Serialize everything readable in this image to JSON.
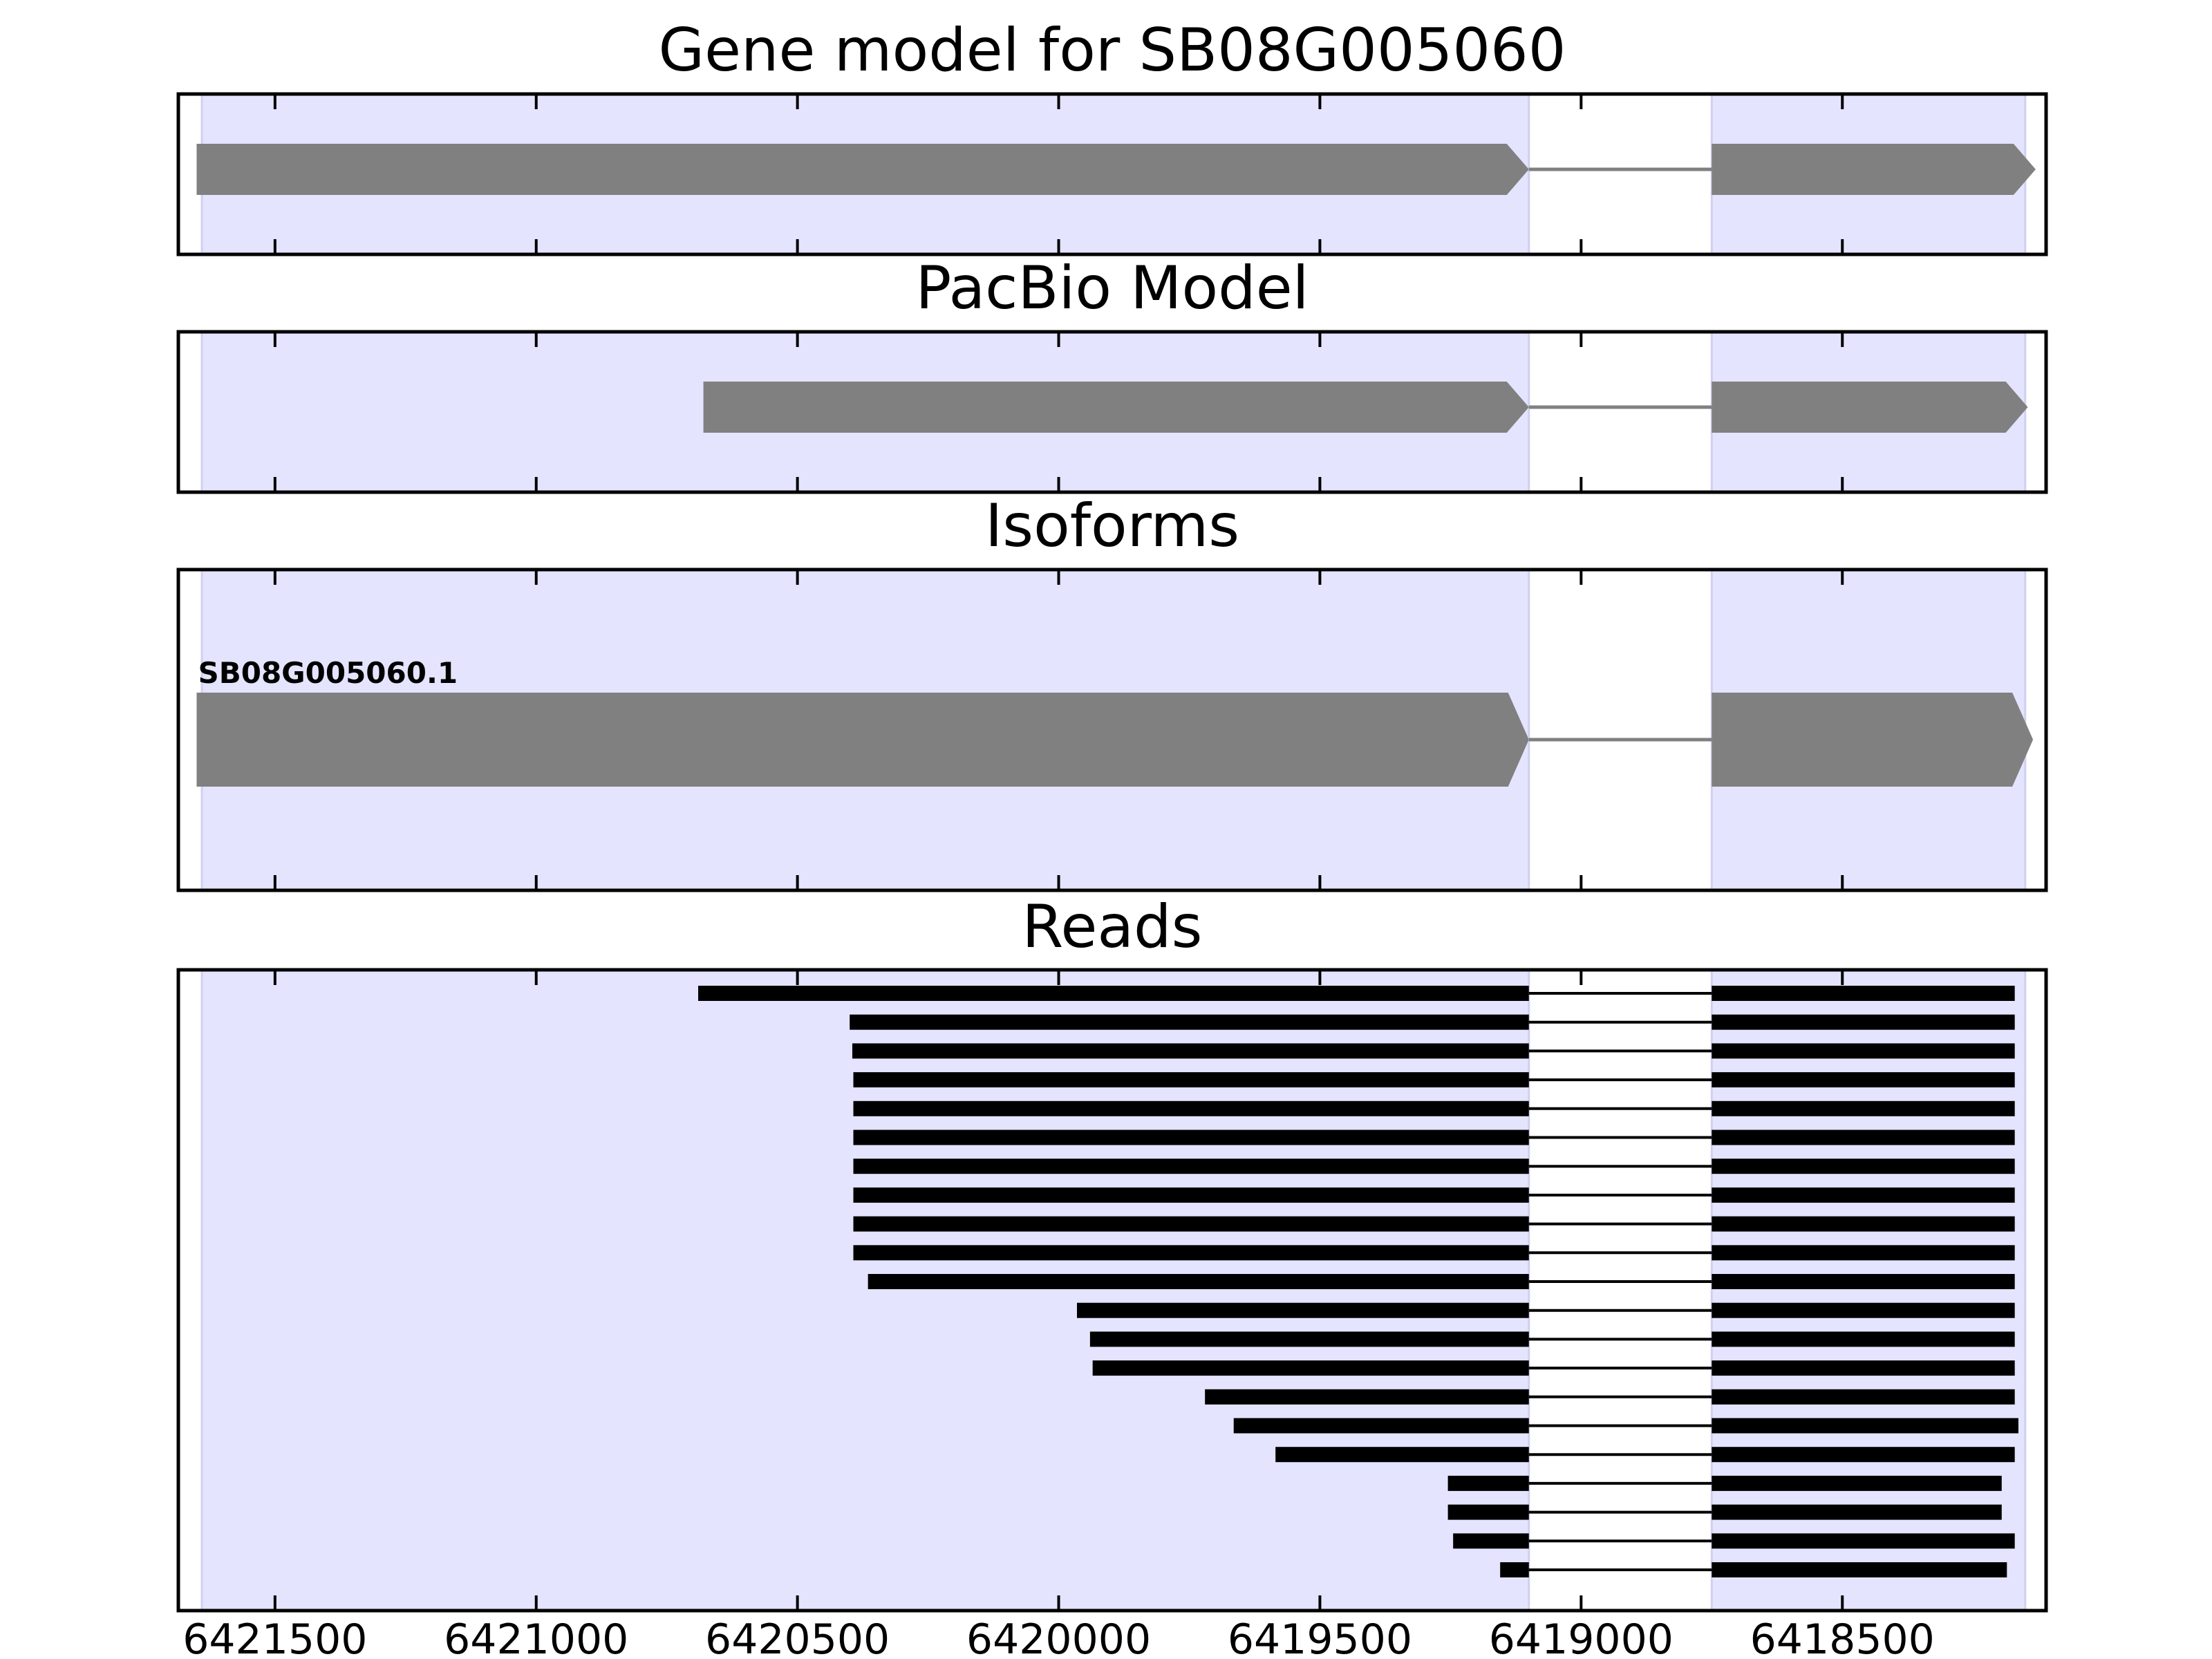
{
  "chart_data": {
    "type": "gene-model-tracks",
    "x_axis": {
      "reversed": true,
      "xlim": [
        6421685,
        6418110
      ],
      "ticks": [
        6421500,
        6421000,
        6420500,
        6420000,
        6419500,
        6419000,
        6418500
      ],
      "tick_labels": [
        "6421500",
        "6421000",
        "6420500",
        "6420000",
        "6419500",
        "6419000",
        "6418500"
      ]
    },
    "shaded_regions": [
      {
        "start": 6421640,
        "end": 6419100
      },
      {
        "start": 6418750,
        "end": 6418150
      }
    ],
    "colors": {
      "shade": "#e4e4fe",
      "shade_edge": "#cfd0f0",
      "feature": "#808080",
      "read": "#000000"
    },
    "panels": [
      {
        "id": "gene-model",
        "title": "Gene model for SB08G005060",
        "features": [
          {
            "exons": [
              [
                6421650,
                6419100
              ],
              [
                6418750,
                6418130
              ]
            ],
            "strand": "-"
          }
        ]
      },
      {
        "id": "pacbio-model",
        "title": "PacBio Model",
        "features": [
          {
            "exons": [
              [
                6420680,
                6419100
              ],
              [
                6418750,
                6418145
              ]
            ],
            "strand": "-"
          }
        ]
      },
      {
        "id": "isoforms",
        "title": "Isoforms",
        "features": [
          {
            "label": "SB08G005060.1",
            "exons": [
              [
                6421650,
                6419100
              ],
              [
                6418750,
                6418135
              ]
            ],
            "strand": "-"
          }
        ]
      },
      {
        "id": "reads",
        "title": "Reads",
        "reads": [
          {
            "start": 6420690,
            "end": 6418170
          },
          {
            "start": 6420400,
            "end": 6418170
          },
          {
            "start": 6420395,
            "end": 6418170
          },
          {
            "start": 6420393,
            "end": 6418170
          },
          {
            "start": 6420393,
            "end": 6418170
          },
          {
            "start": 6420393,
            "end": 6418170
          },
          {
            "start": 6420393,
            "end": 6418170
          },
          {
            "start": 6420393,
            "end": 6418170
          },
          {
            "start": 6420393,
            "end": 6418170
          },
          {
            "start": 6420393,
            "end": 6418170
          },
          {
            "start": 6420365,
            "end": 6418170
          },
          {
            "start": 6419965,
            "end": 6418170
          },
          {
            "start": 6419940,
            "end": 6418170
          },
          {
            "start": 6419935,
            "end": 6418170
          },
          {
            "start": 6419720,
            "end": 6418170
          },
          {
            "start": 6419665,
            "end": 6418163
          },
          {
            "start": 6419585,
            "end": 6418170
          },
          {
            "start": 6419255,
            "end": 6418195
          },
          {
            "start": 6419255,
            "end": 6418195
          },
          {
            "start": 6419245,
            "end": 6418170
          },
          {
            "start": 6419155,
            "end": 6418185
          }
        ],
        "intron": {
          "start": 6419100,
          "end": 6418750
        }
      }
    ]
  }
}
